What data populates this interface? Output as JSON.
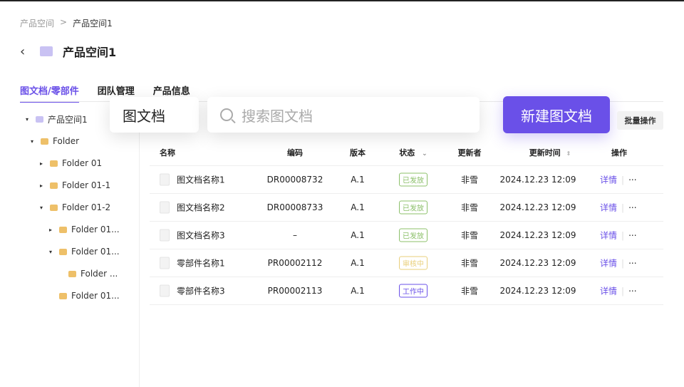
{
  "breadcrumb": [
    "产品空间",
    "产品空间1"
  ],
  "breadcrumb_sep": ">",
  "page_title": "产品空间1",
  "tabs": [
    {
      "label": "图文档/零部件",
      "active": true
    },
    {
      "label": "团队管理"
    },
    {
      "label": "产品信息"
    }
  ],
  "tree": [
    {
      "label": "产品空间1",
      "caret": "▾",
      "level": 0,
      "type": "space"
    },
    {
      "label": "Folder",
      "caret": "▾",
      "level": 1
    },
    {
      "label": "Folder 01",
      "caret": "▸",
      "level": 2
    },
    {
      "label": "Folder 01-1",
      "caret": "▸",
      "level": 2
    },
    {
      "label": "Folder 01-2",
      "caret": "▾",
      "level": 2
    },
    {
      "label": "Folder 01...",
      "caret": "▸",
      "level": 3
    },
    {
      "label": "Folder 01...",
      "caret": "▾",
      "level": 3
    },
    {
      "label": "Folder ...",
      "caret": "",
      "level": 4
    },
    {
      "label": "Folder 01...",
      "caret": "",
      "level": 3
    }
  ],
  "type_select": "图文档",
  "search_placeholder": "搜索图文档",
  "new_button": "新建图文档",
  "batch_button": "批量操作",
  "columns": [
    "名称",
    "编码",
    "版本",
    "状态",
    "更新者",
    "更新时间",
    "操作"
  ],
  "rows": [
    {
      "name": "图文档名称1",
      "code": "DR00008732",
      "version": "A.1",
      "status": "已发放",
      "updater": "非雪",
      "time": "2024.12.23 12:09",
      "kind": "doc"
    },
    {
      "name": "图文档名称2",
      "code": "DR00008733",
      "version": "A.1",
      "status": "已发放",
      "updater": "非雪",
      "time": "2024.12.23 12:09",
      "kind": "doc"
    },
    {
      "name": "图文档名称3",
      "code": "–",
      "version": "A.1",
      "status": "已发放",
      "updater": "非雪",
      "time": "2024.12.23 12:09",
      "kind": "doc"
    },
    {
      "name": "零部件名称1",
      "code": "PR00002112",
      "version": "A.1",
      "status": "审核中",
      "updater": "非雪",
      "time": "2024.12.23 12:09",
      "kind": "part"
    },
    {
      "name": "零部件名称3",
      "code": "PR00002113",
      "version": "A.1",
      "status": "工作中",
      "updater": "非雪",
      "time": "2024.12.23 12:09",
      "kind": "part"
    }
  ],
  "detail_label": "详情",
  "more_label": "···",
  "status_colors": {
    "已发放": "#8cc06a",
    "审核中": "#e9cf7a",
    "工作中": "#6a50e8"
  },
  "accent": "#6a50e8"
}
